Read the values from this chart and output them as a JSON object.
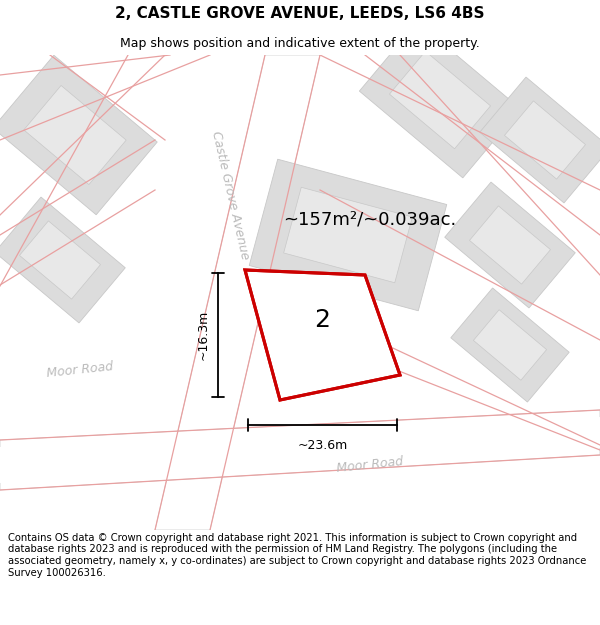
{
  "title": "2, CASTLE GROVE AVENUE, LEEDS, LS6 4BS",
  "subtitle": "Map shows position and indicative extent of the property.",
  "footer": "Contains OS data © Crown copyright and database right 2021. This information is subject to Crown copyright and database rights 2023 and is reproduced with the permission of HM Land Registry. The polygons (including the associated geometry, namely x, y co-ordinates) are subject to Crown copyright and database rights 2023 Ordnance Survey 100026316.",
  "area_text": "~157m²/~0.039ac.",
  "property_number": "2",
  "dim_width": "~23.6m",
  "dim_height": "~16.3m",
  "bg_color": "#f0f0f0",
  "road_white": "#ffffff",
  "block_outer": "#dcdcdc",
  "block_inner": "#e8e8e8",
  "block_edge": "#c8c8c8",
  "red_line": "#cc0000",
  "pink_line": "#e8a0a0",
  "gray_road_edge": "#c8c8c8",
  "road_label_color": "#bbbbbb",
  "title_fontsize": 11,
  "subtitle_fontsize": 9,
  "footer_fontsize": 7.2,
  "number_fontsize": 18,
  "area_fontsize": 13,
  "dim_fontsize": 9,
  "road_label_fontsize": 9
}
